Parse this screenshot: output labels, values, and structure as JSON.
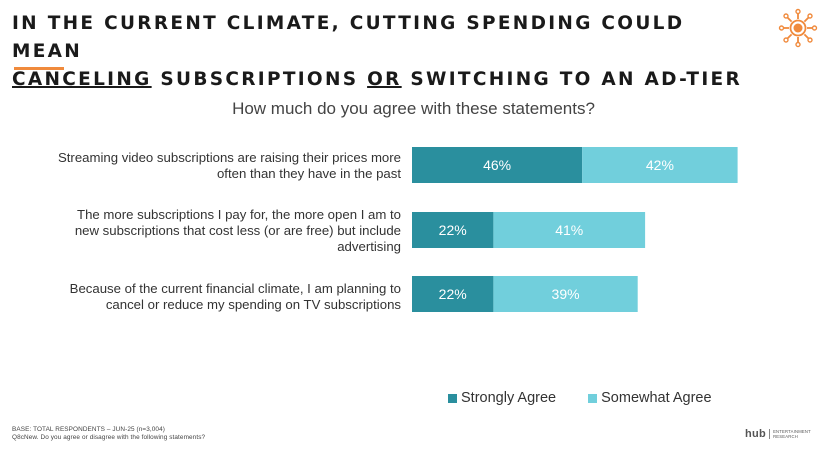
{
  "header": {
    "title_line1": "IN THE CURRENT CLIMATE, CUTTING SPENDING COULD MEAN",
    "title_line2_a": "CANCELING",
    "title_line2_b": " SUBSCRIPTIONS ",
    "title_line2_c": "OR",
    "title_line2_d": " SWITCHING TO AN AD-TIER",
    "logo_icon": "sun-network-icon",
    "accent_color": "#f08a3c"
  },
  "chart_data": {
    "type": "bar",
    "stacked": true,
    "orientation": "horizontal",
    "title": "How much do you agree with these statements?",
    "categories": [
      "Streaming video subscriptions are raising their prices more often than they have in the past",
      "The more subscriptions I pay for, the more open I am to new subscriptions that cost less (or are free) but include advertising",
      "Because of the current financial climate, I am planning to cancel or reduce my spending on TV subscriptions"
    ],
    "series": [
      {
        "name": "Strongly Agree",
        "values": [
          46,
          22,
          22
        ],
        "labels": [
          "46%",
          "22%",
          "22%"
        ],
        "color": "#2a8f9e"
      },
      {
        "name": "Somewhat Agree",
        "values": [
          42,
          41,
          39
        ],
        "labels": [
          "42%",
          "41%",
          "39%"
        ],
        "color": "#71cfdc"
      }
    ],
    "xlim": [
      0,
      100
    ],
    "legend_position": "bottom-right"
  },
  "labels": {
    "row1_line1": "Streaming video subscriptions are raising their prices more",
    "row1_line2": "often than they have in the past",
    "row2_line1": "The more subscriptions I pay for, the more open I am to",
    "row2_line2": "new subscriptions that cost less (or are free) but include",
    "row2_line3": "advertising",
    "row3_line1": "Because of the current financial climate, I am planning to",
    "row3_line2": "cancel or reduce my spending on TV subscriptions"
  },
  "footer": {
    "base": "BASE: TOTAL RESPONDENTS – JUN-25 (n=3,004)",
    "question": "Q8cNew. Do you agree or disagree with the following statements?",
    "brand_main": "hub",
    "brand_sub1": "ENTERTAINMENT",
    "brand_sub2": "RESEARCH"
  }
}
